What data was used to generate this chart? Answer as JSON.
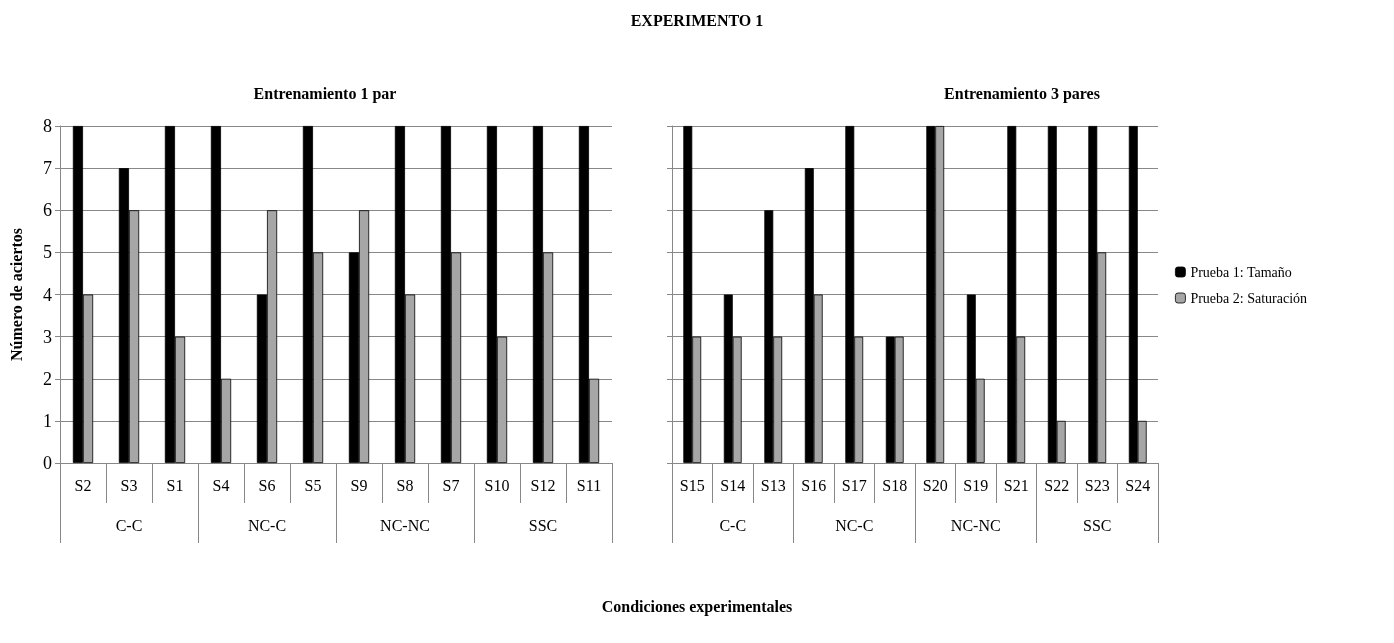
{
  "chart_data": [
    {
      "type": "bar",
      "title": "Entrenamiento 1 par",
      "ylabel": "Número de aciertos",
      "xlabel": "Condiciones experimentales",
      "annotations": [
        "EXPERIMENTO 1",
        "C-C",
        "NC-C",
        "NC-NC",
        "SSC"
      ],
      "categories": [
        "S2",
        "S3",
        "S1",
        "S4",
        "S6",
        "S5",
        "S9",
        "S8",
        "S7",
        "S10",
        "S12",
        "S11"
      ],
      "series": [
        {
          "color": "#000000",
          "values": [
            8,
            7,
            8,
            8,
            4,
            8,
            5,
            8,
            8,
            8,
            8,
            8
          ]
        },
        {
          "color": "#a6a6a6",
          "values": [
            4,
            6,
            3,
            2,
            6,
            5,
            6,
            4,
            5,
            3,
            5,
            2
          ]
        }
      ],
      "ylim": [
        0,
        8
      ],
      "yticks": [
        0,
        1,
        2,
        3,
        4,
        5,
        6,
        7,
        8
      ],
      "grid": "y",
      "legend": false
    },
    {
      "type": "bar",
      "title": "Entrenamiento 3 pares",
      "annotations": [
        "C-C",
        "NC-C",
        "NC-NC",
        "SSC"
      ],
      "categories": [
        "S15",
        "S14",
        "S13",
        "S16",
        "S17",
        "S18",
        "S20",
        "S19",
        "S21",
        "S22",
        "S23",
        "S24"
      ],
      "series": [
        {
          "name": "Prueba 1: Tamaño",
          "color": "#000000",
          "values": [
            8,
            4,
            6,
            7,
            8,
            3,
            8,
            4,
            8,
            8,
            8,
            8
          ]
        },
        {
          "name": "Prueba 2: Saturación",
          "color": "#a6a6a6",
          "values": [
            3,
            3,
            3,
            4,
            3,
            3,
            8,
            2,
            3,
            1,
            5,
            1
          ]
        }
      ],
      "ylim": [
        0,
        8
      ],
      "yticks": [
        0,
        1,
        2,
        3,
        4,
        5,
        6,
        7,
        8
      ],
      "grid": "y",
      "legend": "right",
      "tick_labels": "x"
    }
  ]
}
